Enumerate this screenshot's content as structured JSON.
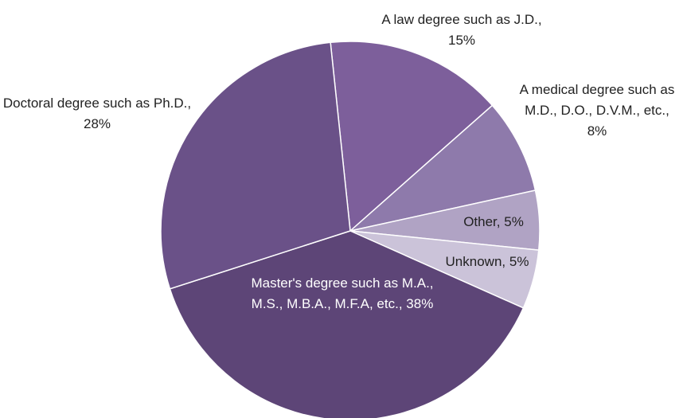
{
  "chart_data": {
    "type": "pie",
    "categories": [
      "A law degree such as J.D.,",
      "A medical degree such as M.D., D.O., D.V.M., etc.,",
      "Other,",
      "Unknown,",
      "Master's degree such as M.A., M.S., M.B.A., M.F.A, etc.,",
      "Doctoral degree such as Ph.D.,"
    ],
    "values": [
      15,
      8,
      5,
      5,
      38,
      28
    ],
    "value_labels": [
      "15%",
      "8%",
      "5%",
      "5%",
      "38%",
      "28%"
    ],
    "colors": [
      "#7d5f9b",
      "#8e7aab",
      "#b0a3c4",
      "#cbc3d9",
      "#5d4577",
      "#6a5188"
    ]
  }
}
